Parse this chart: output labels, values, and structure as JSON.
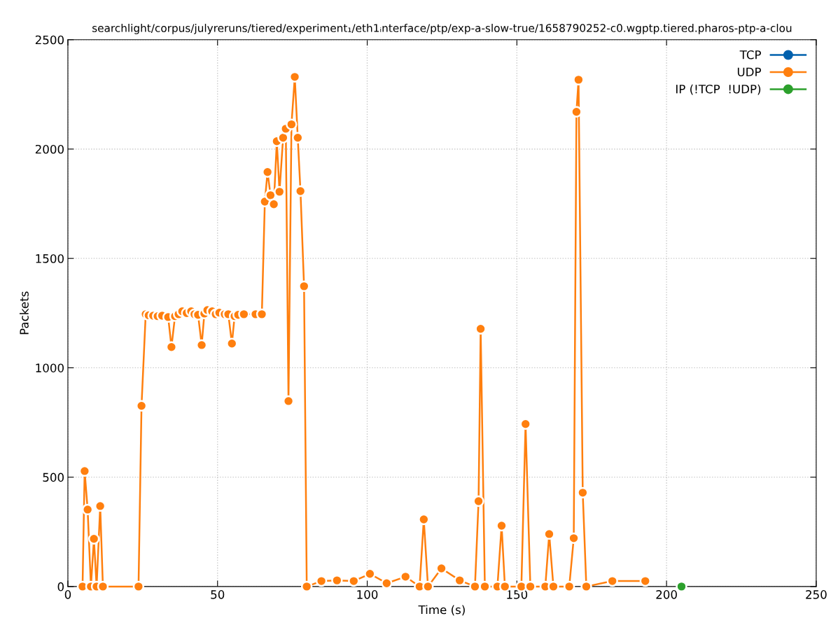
{
  "chart_data": {
    "type": "line",
    "title": "searchlight/corpus/julyreruns/tiered/experiment₁/eth1ᵢnterface/ptp/exp-a-slow-true/1658790252-c0.wgptp.tiered.pharos-ptp-a-clou",
    "xlabel": "Time (s)",
    "ylabel": "Packets",
    "xlim": [
      0,
      250
    ],
    "xticks": [
      0,
      50,
      100,
      150,
      200,
      250
    ],
    "ylim": [
      0,
      2500
    ],
    "yticks": [
      0,
      500,
      1000,
      1500,
      2000,
      2500
    ],
    "grid": true,
    "legend": "top right",
    "marker": "circle",
    "line_style": "solid",
    "series": [
      {
        "name": "TCP",
        "color": "#0060ad"
      },
      {
        "name": "UDP",
        "color": "#ff7f0e",
        "x": [
          4.9,
          5.6,
          6.6,
          7.7,
          8.7,
          9.6,
          10.8,
          11.7,
          23.6,
          24.6,
          26,
          27,
          28.5,
          30,
          31.5,
          33.5,
          34.6,
          35.8,
          37,
          38.2,
          39.7,
          41.2,
          42.3,
          43.5,
          44.7,
          45.6,
          46.6,
          48.2,
          49.4,
          50.6,
          52.4,
          53.6,
          54.8,
          55.7,
          56.9,
          58.8,
          62.7,
          64.8,
          65.8,
          66.7,
          67.7,
          68.8,
          69.8,
          70.7,
          71.9,
          72.8,
          73.7,
          74.7,
          75.8,
          76.8,
          77.7,
          78.9,
          79.8,
          84.7,
          89.9,
          95.5,
          100.9,
          106.5,
          112.8,
          117.5,
          118.9,
          120.3,
          124.8,
          130.9,
          136,
          137.2,
          137.9,
          139.3,
          143.5,
          144.9,
          146,
          151.5,
          152.9,
          154.5,
          159.5,
          160.8,
          162.2,
          167.5,
          169,
          169.9,
          170.6,
          172,
          173.2,
          181.9,
          192.9
        ],
        "values": [
          0,
          528,
          352,
          0,
          218,
          0,
          368,
          0,
          0,
          826,
          1245,
          1240,
          1238,
          1236,
          1238,
          1232,
          1095,
          1236,
          1245,
          1258,
          1250,
          1258,
          1245,
          1242,
          1104,
          1248,
          1264,
          1258,
          1245,
          1252,
          1245,
          1245,
          1111,
          1236,
          1242,
          1245,
          1245,
          1245,
          1760,
          1895,
          1789,
          1748,
          2036,
          1805,
          2052,
          2093,
          848,
          2113,
          2330,
          2052,
          1808,
          1373,
          0,
          25,
          28,
          25,
          58,
          15,
          45,
          0,
          307,
          0,
          83,
          28,
          0,
          390,
          1178,
          0,
          0,
          278,
          0,
          0,
          743,
          0,
          0,
          240,
          0,
          0,
          221,
          2170,
          2317,
          429,
          0,
          25,
          25
        ]
      },
      {
        "name": "IP (!TCP  !UDP)",
        "color": "#2ca02c",
        "x": [
          205
        ],
        "values": [
          0
        ]
      }
    ]
  }
}
